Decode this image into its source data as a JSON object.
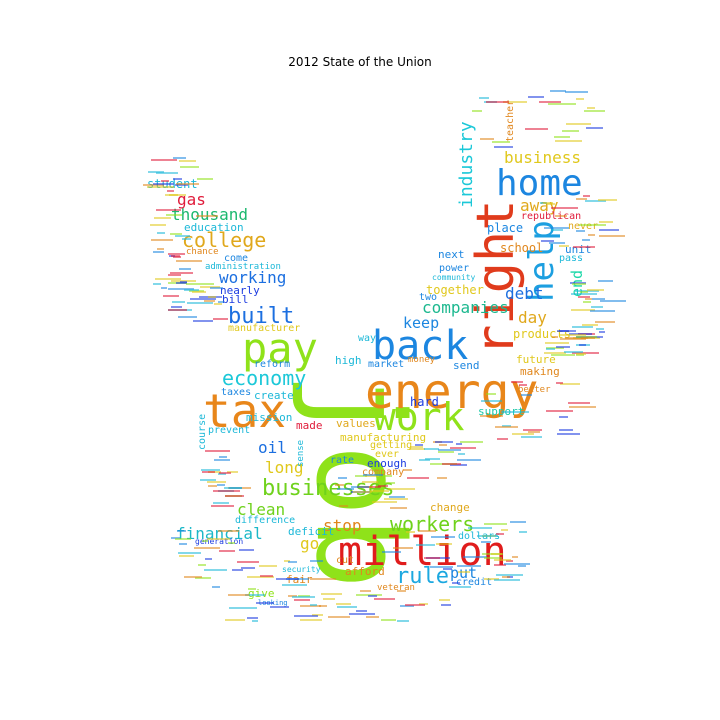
{
  "title": "2012 State of the Union",
  "words": [
    {
      "text": "job",
      "color": "#8fe21a"
    },
    {
      "text": "right",
      "color": "#e03b1c"
    },
    {
      "text": "energy",
      "color": "#e8861a"
    },
    {
      "text": "home",
      "color": "#1c86e0"
    },
    {
      "text": "tax",
      "color": "#e8861a"
    },
    {
      "text": "million",
      "color": "#e01c1c"
    },
    {
      "text": "back",
      "color": "#1c86e0"
    },
    {
      "text": "work",
      "color": "#8fe21a"
    },
    {
      "text": "pay",
      "color": "#8fe21a"
    },
    {
      "text": "help",
      "color": "#1c9fe0"
    },
    {
      "text": "businesses",
      "color": "#6fd21c"
    },
    {
      "text": "economy",
      "color": "#1cc8d8"
    },
    {
      "text": "college",
      "color": "#e0a81c"
    },
    {
      "text": "built",
      "color": "#1c6fe0"
    },
    {
      "text": "workers",
      "color": "#6fd21c"
    },
    {
      "text": "rule",
      "color": "#1ca8e0"
    },
    {
      "text": "financial",
      "color": "#1cb8c8"
    },
    {
      "text": "industry",
      "color": "#1cc8d8"
    },
    {
      "text": "companies",
      "color": "#1cb88f"
    },
    {
      "text": "business",
      "color": "#e0c81c"
    },
    {
      "text": "thousand",
      "color": "#1cb86f"
    },
    {
      "text": "debt",
      "color": "#1c6fe0"
    },
    {
      "text": "away",
      "color": "#e0a81c"
    },
    {
      "text": "clean",
      "color": "#6fd21c"
    },
    {
      "text": "working",
      "color": "#1c6fe0"
    },
    {
      "text": "gas",
      "color": "#e01c3b"
    },
    {
      "text": "keep",
      "color": "#1c86e0"
    },
    {
      "text": "day",
      "color": "#e0a81c"
    },
    {
      "text": "stop",
      "color": "#e0861c"
    },
    {
      "text": "long",
      "color": "#e0c81c"
    },
    {
      "text": "oil",
      "color": "#1c6fe0"
    },
    {
      "text": "end",
      "color": "#1cd8a8"
    },
    {
      "text": "put",
      "color": "#1c86e0"
    },
    {
      "text": "go",
      "color": "#e0c81c"
    },
    {
      "text": "products",
      "color": "#e0c81c"
    },
    {
      "text": "school",
      "color": "#e0861c"
    },
    {
      "text": "student",
      "color": "#1cb8d8"
    },
    {
      "text": "education",
      "color": "#1cb8d8"
    },
    {
      "text": "making",
      "color": "#e0861c"
    },
    {
      "text": "together",
      "color": "#e0c81c"
    },
    {
      "text": "support",
      "color": "#1cc8a8"
    },
    {
      "text": "future",
      "color": "#e0c81c"
    },
    {
      "text": "manufacturing",
      "color": "#e0c81c"
    },
    {
      "text": "manufacturer",
      "color": "#e0c81c"
    },
    {
      "text": "company",
      "color": "#e0861c"
    },
    {
      "text": "enough",
      "color": "#1c3be0"
    },
    {
      "text": "republican",
      "color": "#e01c3b"
    },
    {
      "text": "teacher",
      "color": "#e0861c"
    },
    {
      "text": "place",
      "color": "#1c86e0"
    },
    {
      "text": "power",
      "color": "#1c86e0"
    },
    {
      "text": "next",
      "color": "#1c86e0"
    },
    {
      "text": "unit",
      "color": "#1c86e0"
    },
    {
      "text": "pass",
      "color": "#1cb8d8"
    },
    {
      "text": "never",
      "color": "#e0a81c"
    },
    {
      "text": "two",
      "color": "#1c86e0"
    },
    {
      "text": "hard",
      "color": "#1c3be0"
    },
    {
      "text": "send",
      "color": "#1c86e0"
    },
    {
      "text": "high",
      "color": "#1cb8d8"
    },
    {
      "text": "way",
      "color": "#1cb8d8"
    },
    {
      "text": "values",
      "color": "#e0a81c"
    },
    {
      "text": "made",
      "color": "#e01c3b"
    },
    {
      "text": "mission",
      "color": "#1cb8d8"
    },
    {
      "text": "prevent",
      "color": "#1cb8d8"
    },
    {
      "text": "create",
      "color": "#1cb8d8"
    },
    {
      "text": "taxes",
      "color": "#1c86e0"
    },
    {
      "text": "reform",
      "color": "#1c86e0"
    },
    {
      "text": "nearly",
      "color": "#1c3be0"
    },
    {
      "text": "bill",
      "color": "#1c3be0"
    },
    {
      "text": "come",
      "color": "#1c86e0"
    },
    {
      "text": "chance",
      "color": "#e0861c"
    },
    {
      "text": "administration",
      "color": "#1cb8d8"
    },
    {
      "text": "course",
      "color": "#1cb8d8"
    },
    {
      "text": "difference",
      "color": "#1cb8d8"
    },
    {
      "text": "fair",
      "color": "#e0861c"
    },
    {
      "text": "give",
      "color": "#8fe21a"
    },
    {
      "text": "afford",
      "color": "#e0861c"
    },
    {
      "text": "veteran",
      "color": "#e0861c"
    },
    {
      "text": "credit",
      "color": "#1c86e0"
    },
    {
      "text": "deficit",
      "color": "#1cb8d8"
    },
    {
      "text": "cut",
      "color": "#e0861c"
    },
    {
      "text": "dollars",
      "color": "#1cb8d8"
    },
    {
      "text": "change",
      "color": "#e0a81c"
    },
    {
      "text": "getting",
      "color": "#e0c81c"
    },
    {
      "text": "ever",
      "color": "#e0c81c"
    },
    {
      "text": "rate",
      "color": "#1c86e0"
    },
    {
      "text": "better",
      "color": "#e0861c"
    },
    {
      "text": "market",
      "color": "#1c86e0"
    },
    {
      "text": "money",
      "color": "#e0861c"
    },
    {
      "text": "community",
      "color": "#1cb8d8"
    },
    {
      "text": "sense",
      "color": "#1cb8d8"
    },
    {
      "text": "generation",
      "color": "#1c3be0"
    },
    {
      "text": "looking",
      "color": "#1c86e0"
    },
    {
      "text": "security",
      "color": "#1cb8d8"
    }
  ]
}
